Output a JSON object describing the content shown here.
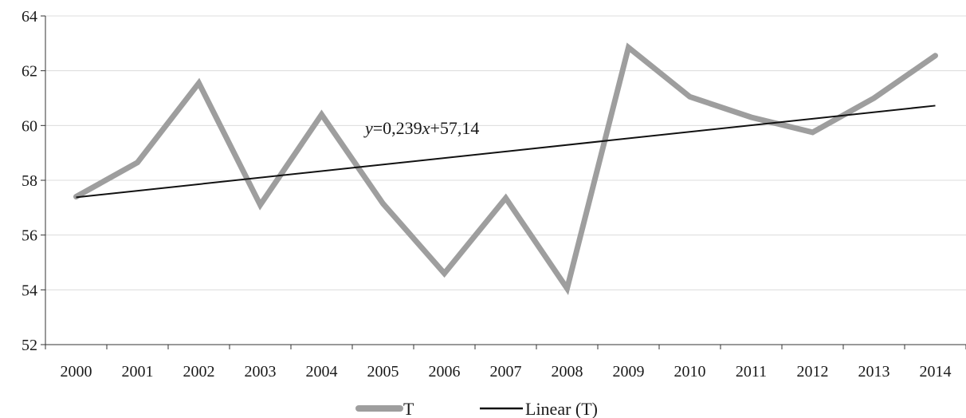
{
  "chart_data": {
    "type": "line",
    "categories": [
      "2000",
      "2001",
      "2002",
      "2003",
      "2004",
      "2005",
      "2006",
      "2007",
      "2008",
      "2009",
      "2010",
      "2011",
      "2012",
      "2013",
      "2014"
    ],
    "ylim": [
      52,
      64
    ],
    "yticks": [
      52,
      54,
      56,
      58,
      60,
      62,
      64
    ],
    "grid": true,
    "legend_position": "bottom",
    "series": [
      {
        "name": "T",
        "color": "#9e9e9e",
        "values": [
          57.4,
          58.65,
          61.55,
          57.1,
          60.4,
          57.15,
          54.6,
          57.35,
          54.05,
          62.85,
          61.05,
          60.3,
          59.75,
          61.0,
          62.55
        ]
      },
      {
        "name": "Linear (T)",
        "color": "#111111",
        "trendline": {
          "slope": 0.239,
          "intercept": 57.14
        }
      }
    ],
    "annotation": {
      "y_label": "y",
      "text_before_x": "=0,239",
      "x_label": "x",
      "text_after_x": "+57,14"
    }
  }
}
